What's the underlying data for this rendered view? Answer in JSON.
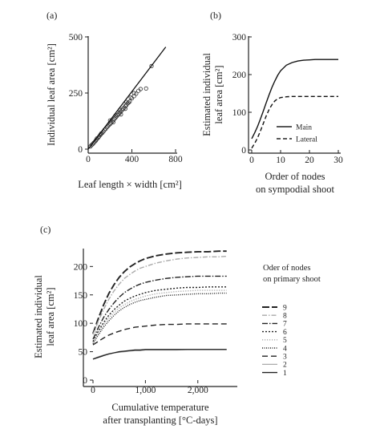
{
  "chart_data": [
    {
      "panel": "(a)",
      "type": "scatter",
      "xlabel": "Leaf length × width [cm²]",
      "ylabel": "Individual leaf area [cm²]",
      "xlim": [
        0,
        800
      ],
      "ylim": [
        0,
        500
      ],
      "xticks": [
        0,
        400,
        800
      ],
      "yticks": [
        0,
        250,
        500
      ],
      "tick_labels_x": [
        "0",
        "400",
        "800"
      ],
      "tick_labels_y": [
        "0",
        "250",
        "500"
      ],
      "grid": false,
      "points": [
        [
          20,
          12
        ],
        [
          30,
          18
        ],
        [
          40,
          22
        ],
        [
          50,
          27
        ],
        [
          60,
          33
        ],
        [
          70,
          38
        ],
        [
          75,
          42
        ],
        [
          80,
          48
        ],
        [
          90,
          50
        ],
        [
          100,
          56
        ],
        [
          110,
          63
        ],
        [
          115,
          66
        ],
        [
          120,
          70
        ],
        [
          130,
          73
        ],
        [
          140,
          79
        ],
        [
          150,
          86
        ],
        [
          160,
          90
        ],
        [
          170,
          97
        ],
        [
          180,
          102
        ],
        [
          190,
          107
        ],
        [
          200,
          112
        ],
        [
          210,
          118
        ],
        [
          220,
          124
        ],
        [
          230,
          129
        ],
        [
          240,
          135
        ],
        [
          250,
          140
        ],
        [
          260,
          146
        ],
        [
          270,
          152
        ],
        [
          280,
          157
        ],
        [
          290,
          162
        ],
        [
          300,
          168
        ],
        [
          310,
          174
        ],
        [
          320,
          180
        ],
        [
          330,
          185
        ],
        [
          340,
          192
        ],
        [
          350,
          196
        ],
        [
          360,
          204
        ],
        [
          370,
          207
        ],
        [
          380,
          212
        ],
        [
          400,
          226
        ],
        [
          420,
          236
        ],
        [
          440,
          247
        ],
        [
          460,
          260
        ],
        [
          480,
          268
        ],
        [
          200,
          128
        ],
        [
          230,
          120
        ],
        [
          290,
          175
        ],
        [
          350,
          210
        ],
        [
          390,
          230
        ],
        [
          420,
          250
        ],
        [
          300,
          155
        ],
        [
          340,
          180
        ],
        [
          250,
          150
        ],
        [
          530,
          270
        ],
        [
          580,
          370
        ]
      ],
      "fit_line": {
        "x": [
          0,
          710
        ],
        "y": [
          0,
          455
        ]
      }
    },
    {
      "panel": "(b)",
      "type": "line",
      "xlabel_lines": [
        "Order of nodes",
        "on sympodial shoot"
      ],
      "ylabel_lines": [
        "Estimated individual",
        "leaf area [cm²]"
      ],
      "xlim": [
        0,
        30
      ],
      "ylim": [
        0,
        300
      ],
      "xticks": [
        0,
        10,
        20,
        30
      ],
      "yticks": [
        0,
        100,
        200,
        300
      ],
      "tick_labels_x": [
        "0",
        "10",
        "20",
        "30"
      ],
      "tick_labels_y": [
        "0",
        "100",
        "200",
        "300"
      ],
      "grid": false,
      "legend_position": "bottom-right",
      "series": [
        {
          "name": "Main",
          "style": "solid",
          "x": [
            0,
            1,
            2,
            3,
            4,
            5,
            6,
            7,
            8,
            9,
            10,
            12,
            14,
            16,
            18,
            20,
            22,
            24,
            26,
            28,
            30
          ],
          "y": [
            30,
            45,
            62,
            82,
            103,
            125,
            146,
            166,
            183,
            198,
            210,
            225,
            232,
            236,
            238,
            239,
            240,
            240,
            240,
            240,
            240
          ]
        },
        {
          "name": "Lateral",
          "style": "dashed",
          "x": [
            0,
            1,
            2,
            3,
            4,
            5,
            6,
            7,
            8,
            9,
            10,
            12,
            14,
            16,
            18,
            20,
            22,
            24,
            26,
            28,
            30
          ],
          "y": [
            5,
            17,
            32,
            50,
            70,
            90,
            107,
            120,
            130,
            136,
            139,
            141,
            142,
            142,
            142,
            142,
            142,
            142,
            142,
            142,
            142
          ]
        }
      ]
    },
    {
      "panel": "(c)",
      "type": "line",
      "xlabel_lines": [
        "Cumulative temperature",
        "after transplanting [°C-days]"
      ],
      "ylabel_lines": [
        "Estimated individual",
        "leaf area [cm²]"
      ],
      "xlim": [
        0,
        2600
      ],
      "ylim": [
        0,
        240
      ],
      "xticks": [
        0,
        1000,
        2000
      ],
      "yticks": [
        0,
        50,
        100,
        150,
        200
      ],
      "tick_labels_x": [
        "0",
        "1,000",
        "2,000"
      ],
      "tick_labels_y": [
        "0",
        "50",
        "100",
        "150",
        "200"
      ],
      "grid": false,
      "legend_title_lines": [
        "Oder of nodes",
        "on primary shoot"
      ],
      "legend_position": "right",
      "x": [
        0,
        100,
        200,
        300,
        400,
        500,
        600,
        700,
        800,
        900,
        1000,
        1200,
        1400,
        1600,
        1800,
        2000,
        2200,
        2400,
        2550
      ],
      "series": [
        {
          "name": "9",
          "dash": "9 3",
          "color": "#222222",
          "width": 1.9,
          "y": [
            82,
            108,
            132,
            152,
            168,
            181,
            191,
            199,
            205,
            210,
            214,
            219,
            222,
            224,
            225,
            226,
            226,
            227,
            227
          ]
        },
        {
          "name": "8",
          "dash": "6 2 1.5 2",
          "color": "#aaaaaa",
          "width": 1.4,
          "y": [
            80,
            103,
            124,
            142,
            157,
            169,
            179,
            186,
            192,
            197,
            200,
            206,
            210,
            213,
            215,
            216,
            217,
            217,
            218
          ]
        },
        {
          "name": "7",
          "dash": "7 2 1.5 2",
          "color": "#222222",
          "width": 1.4,
          "y": [
            72,
            92,
            110,
            124,
            136,
            146,
            154,
            160,
            165,
            169,
            172,
            176,
            179,
            181,
            182,
            183,
            183,
            183,
            183
          ]
        },
        {
          "name": "6",
          "dash": "2 2",
          "color": "#222222",
          "width": 1.4,
          "y": [
            68,
            86,
            101,
            114,
            124,
            132,
            139,
            144,
            148,
            151,
            154,
            158,
            160,
            162,
            163,
            163,
            164,
            164,
            164
          ]
        },
        {
          "name": "5",
          "dash": "1.2 1.8",
          "color": "#aaaaaa",
          "width": 1.4,
          "y": [
            66,
            82,
            97,
            109,
            119,
            127,
            133,
            138,
            142,
            145,
            148,
            152,
            154,
            156,
            157,
            158,
            158,
            158,
            158
          ]
        },
        {
          "name": "4",
          "dash": "1 1.5",
          "color": "#222222",
          "width": 1.4,
          "y": [
            64,
            79,
            93,
            104,
            114,
            122,
            128,
            133,
            137,
            140,
            142,
            146,
            149,
            150,
            151,
            152,
            152,
            153,
            153
          ]
        },
        {
          "name": "3",
          "dash": "7 4",
          "color": "#222222",
          "width": 1.4,
          "y": [
            62,
            68,
            74,
            79,
            83,
            86,
            89,
            91,
            93,
            94,
            95,
            97,
            98,
            98,
            99,
            99,
            99,
            99,
            99
          ]
        },
        {
          "name": "2",
          "dash": "",
          "color": "#aaaaaa",
          "width": 1.3,
          "y": [
            37,
            41,
            44,
            46,
            48,
            49,
            50,
            51,
            52,
            52,
            53,
            53,
            53,
            53,
            54,
            54,
            54,
            54,
            54
          ]
        },
        {
          "name": "1",
          "dash": "",
          "color": "#222222",
          "width": 1.4,
          "y": [
            37,
            40,
            43,
            46,
            48,
            50,
            51,
            52,
            53,
            53,
            54,
            54,
            54,
            54,
            54,
            54,
            54,
            54,
            54
          ]
        }
      ]
    }
  ]
}
